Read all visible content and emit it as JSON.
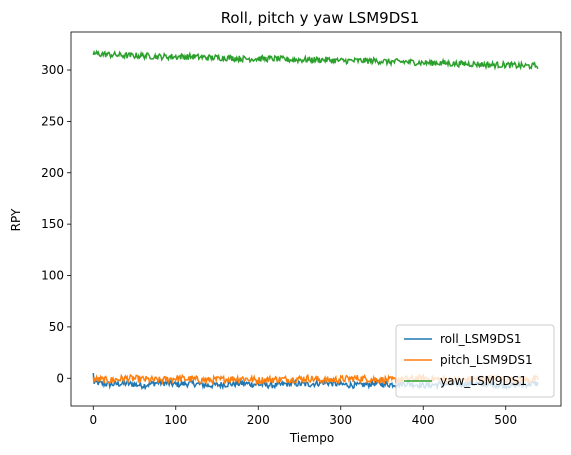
{
  "chart_data": {
    "type": "line",
    "title": "Roll, pitch y yaw LSM9DS1",
    "xlabel": "Tiempo",
    "ylabel": "RPY",
    "xlim": [
      -27,
      567
    ],
    "ylim": [
      -27,
      337
    ],
    "x_ticks": [
      0,
      100,
      200,
      300,
      400,
      500
    ],
    "y_ticks": [
      0,
      50,
      100,
      150,
      200,
      250,
      300
    ],
    "grid": false,
    "legend_position": "lower-right",
    "x_range": [
      0,
      539
    ],
    "series": [
      {
        "name": "roll_LSM9DS1",
        "color": "#1f77b4",
        "y_start": 5,
        "y_values_sampled_every_20": [
          -4,
          -6,
          -5,
          -7,
          -4,
          -6,
          -5,
          -7,
          -6,
          -5,
          -6,
          -7,
          -5,
          -6,
          -4,
          -6,
          -7,
          -5,
          -6,
          -5,
          -7,
          -6,
          -6,
          -5,
          -6,
          -7,
          -6,
          -5
        ],
        "noise_amplitude": 3
      },
      {
        "name": "pitch_LSM9DS1",
        "color": "#ff7f0e",
        "y_values_sampled_every_20": [
          -1,
          -2,
          0,
          -1,
          -2,
          0,
          -1,
          -2,
          -1,
          0,
          -2,
          -1,
          -1,
          0,
          -2,
          -1,
          0,
          -1,
          -2,
          -1,
          0,
          -1,
          -2,
          -1,
          0,
          -1,
          -2,
          -1
        ],
        "noise_amplitude": 3.5
      },
      {
        "name": "yaw_LSM9DS1",
        "color": "#2ca02c",
        "y_values_sampled_every_20": [
          316,
          315,
          314,
          314,
          313,
          313,
          313,
          312,
          312,
          311,
          311,
          311,
          310,
          310,
          310,
          309,
          309,
          309,
          308,
          308,
          307,
          307,
          306,
          306,
          305,
          305,
          304,
          304
        ],
        "noise_amplitude": 3
      }
    ]
  }
}
